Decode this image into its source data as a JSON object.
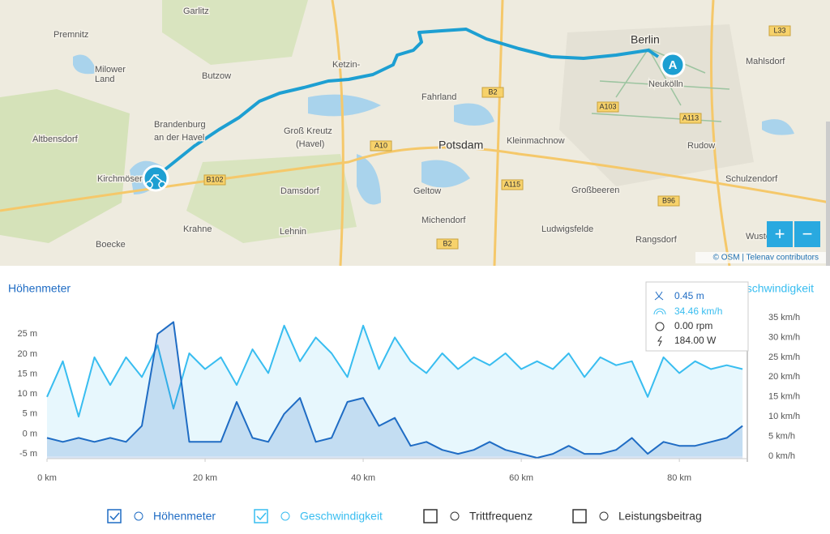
{
  "map": {
    "labels": [
      "Garlitz",
      "Premnitz",
      "Milower",
      "Land",
      "Butzow",
      "Ketzin-",
      "Fahrland",
      "Berlin",
      "Neukölln",
      "Mahlsdorf",
      "Brandenburg",
      "an der Havel",
      "Groß Kreutz",
      "(Havel)",
      "Potsdam",
      "Kleinmachnow",
      "Rudow",
      "Altbensdorf",
      "Kirchmöser",
      "Damsdorf",
      "Geltow",
      "Großbeeren",
      "Schulzendorf",
      "Michendorf",
      "Ludwigsfelde",
      "Rangsdorf",
      "Krahne",
      "Lehnin",
      "Boecke",
      "Wuste"
    ],
    "roads": [
      "A10",
      "A103",
      "A113",
      "A115",
      "B2",
      "B102",
      "B96",
      "L33",
      "B2"
    ],
    "start_marker": "A",
    "zoom": [
      "+",
      "−"
    ],
    "attribution": "© OSM | Telenav contributors"
  },
  "chart_data": {
    "type": "line",
    "ylabel": "Höhenmeter",
    "y2label": "Geschwindigkeit",
    "x": [
      0,
      2,
      4,
      6,
      8,
      10,
      12,
      14,
      16,
      18,
      20,
      22,
      24,
      26,
      28,
      30,
      32,
      34,
      36,
      38,
      40,
      42,
      44,
      46,
      48,
      50,
      52,
      54,
      56,
      58,
      60,
      62,
      64,
      66,
      68,
      70,
      72,
      74,
      76,
      78,
      80,
      82,
      84,
      86,
      88
    ],
    "xlim": [
      0,
      88.6
    ],
    "xticks": [
      {
        "value": 0,
        "label": "0 km"
      },
      {
        "value": 20,
        "label": "20 km"
      },
      {
        "value": 40,
        "label": "40 km"
      },
      {
        "value": 60,
        "label": "60 km"
      },
      {
        "value": 80,
        "label": "80 km"
      }
    ],
    "ylim": [
      -6.2,
      29.1
    ],
    "yticks": [
      {
        "value": -5,
        "label": "-5 m"
      },
      {
        "value": 0,
        "label": "0 m"
      },
      {
        "value": 5,
        "label": "5 m"
      },
      {
        "value": 10,
        "label": "10 m"
      },
      {
        "value": 15,
        "label": "15 m"
      },
      {
        "value": 20,
        "label": "20 m"
      },
      {
        "value": 25,
        "label": "25 m"
      }
    ],
    "y2lim": [
      -0.6,
      35
    ],
    "y2ticks": [
      {
        "value": 0,
        "label": "0 km/h"
      },
      {
        "value": 5,
        "label": "5 km/h"
      },
      {
        "value": 10,
        "label": "10 km/h"
      },
      {
        "value": 15,
        "label": "15 km/h"
      },
      {
        "value": 20,
        "label": "20 km/h"
      },
      {
        "value": 25,
        "label": "25 km/h"
      },
      {
        "value": 30,
        "label": "30 km/h"
      },
      {
        "value": 35,
        "label": "35 km/h"
      }
    ],
    "series": [
      {
        "name": "Höhenmeter",
        "color": "#1f6cc4",
        "visible": true,
        "values": [
          -1,
          -2,
          -1,
          -2,
          -1,
          -2,
          2,
          25,
          28,
          -2,
          -2,
          -2,
          8,
          -1,
          -2,
          5,
          9,
          -2,
          -1,
          8,
          9,
          2,
          4,
          -3,
          -2,
          -4,
          -5,
          -4,
          -2,
          -4,
          -5,
          -6,
          -5,
          -3,
          -5,
          -5,
          -4,
          -1,
          -5,
          -2,
          -3,
          -3,
          -2,
          -1,
          2
        ]
      },
      {
        "name": "Geschwindigkeit",
        "color": "#38bdf0",
        "visible": true,
        "axis": "y2",
        "values": [
          15,
          24,
          10,
          25,
          18,
          25,
          20,
          28,
          12,
          26,
          22,
          25,
          18,
          27,
          21,
          33,
          24,
          30,
          26,
          20,
          33,
          22,
          30,
          24,
          21,
          26,
          22,
          25,
          23,
          26,
          22,
          24,
          22,
          26,
          20,
          25,
          23,
          24,
          15,
          25,
          21,
          24,
          22,
          23,
          22
        ]
      }
    ]
  },
  "toggles": [
    {
      "label": "Trittfrequenz",
      "checked": false
    },
    {
      "label": "Leistungsbeitrag",
      "checked": false
    }
  ],
  "tooltip": [
    "0.45 m",
    "34.46 km/h",
    "0.00 rpm",
    "184.00 W"
  ]
}
